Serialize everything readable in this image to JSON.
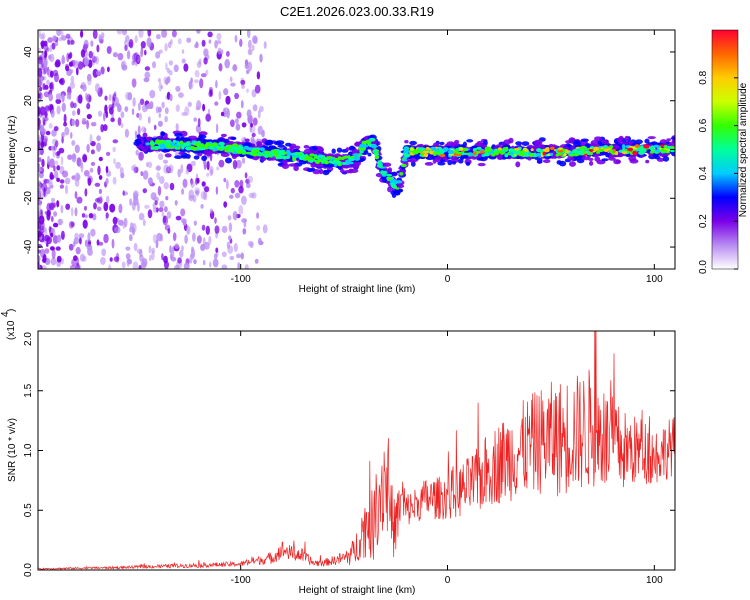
{
  "figure": {
    "title": "C2E1.2026.023.00.33.R19"
  },
  "chart_data": [
    {
      "type": "heatmap",
      "name": "spectrogram",
      "title": "C2E1.2026.023.00.33.R19",
      "xlabel": "Height of straight line (km)",
      "ylabel": "Frequency (Hz)",
      "xlim": [
        -198,
        110
      ],
      "ylim": [
        -49,
        49
      ],
      "xticks": [
        -100,
        0,
        100
      ],
      "xtick_labels": [
        "-100",
        "0",
        "100"
      ],
      "yticks": [
        -40,
        -20,
        0,
        20,
        40
      ],
      "ytick_labels": [
        "-40",
        "-20",
        "0",
        "20",
        "40"
      ],
      "colorbar": {
        "label": "Normalized spectral amplitude",
        "range": [
          0.0,
          1.0
        ],
        "ticks": [
          0.0,
          0.2,
          0.4,
          0.6,
          0.8
        ],
        "tick_labels": [
          "0.0",
          "0.2",
          "0.4",
          "0.6",
          "0.8"
        ],
        "colors": [
          "#ffffff",
          "#b88cf2",
          "#7a00e8",
          "#0000ff",
          "#00ccff",
          "#00ff99",
          "#33ff00",
          "#ccff00",
          "#ffcc00",
          "#ff6600",
          "#ff0033"
        ]
      },
      "ridge_x": [
        -150,
        -130,
        -110,
        -90,
        -70,
        -55,
        -45,
        -40,
        -36,
        -32,
        -28,
        -24,
        -20,
        -10,
        0,
        20,
        40,
        60,
        80,
        100,
        110
      ],
      "ridge_y": [
        2,
        2,
        1,
        -1,
        -3,
        -5,
        -4,
        2,
        3,
        -8,
        -12,
        -16,
        -1,
        -1,
        -1,
        -1,
        -1,
        -1,
        0,
        0,
        0
      ]
    },
    {
      "type": "line",
      "name": "snr",
      "xlabel": "Height of straight line (km)",
      "ylabel": "SNR (10 * v/v)",
      "multiplier_label": "(x10",
      "multiplier_exp": "4",
      "xlim": [
        -198,
        110
      ],
      "ylim": [
        0,
        2.0
      ],
      "xticks": [
        -100,
        0,
        100
      ],
      "xtick_labels": [
        "-100",
        "0",
        "100"
      ],
      "yticks": [
        0.0,
        0.5,
        1.0,
        1.5,
        2.0
      ],
      "ytick_labels": [
        "0.0",
        "0.5",
        "1.0",
        "1.5",
        "2.0"
      ],
      "series": [
        {
          "name": "SNR",
          "color": "#ee2222",
          "x": [
            -198,
            -180,
            -160,
            -140,
            -120,
            -100,
            -95,
            -85,
            -80,
            -75,
            -70,
            -65,
            -60,
            -55,
            -50,
            -45,
            -42,
            -40,
            -38,
            -36,
            -34,
            -32,
            -30,
            -28,
            -26,
            -24,
            -22,
            -20,
            -15,
            -10,
            -5,
            0,
            5,
            10,
            15,
            20,
            25,
            30,
            35,
            40,
            45,
            50,
            55,
            60,
            65,
            70,
            75,
            80,
            85,
            90,
            95,
            100,
            105,
            110
          ],
          "y": [
            0.01,
            0.015,
            0.02,
            0.03,
            0.04,
            0.05,
            0.07,
            0.1,
            0.17,
            0.14,
            0.12,
            0.06,
            0.06,
            0.08,
            0.1,
            0.15,
            0.3,
            0.35,
            0.42,
            0.35,
            0.55,
            0.7,
            0.8,
            0.55,
            0.35,
            0.45,
            0.6,
            0.5,
            0.55,
            0.6,
            0.6,
            0.62,
            0.65,
            0.7,
            0.75,
            0.85,
            0.9,
            0.95,
            1.0,
            1.05,
            1.08,
            1.1,
            1.1,
            1.15,
            1.15,
            1.2,
            1.1,
            1.05,
            1.0,
            1.0,
            1.0,
            0.95,
            1.0,
            1.05
          ],
          "spread": [
            0.005,
            0.008,
            0.01,
            0.015,
            0.02,
            0.02,
            0.03,
            0.05,
            0.08,
            0.06,
            0.06,
            0.03,
            0.03,
            0.04,
            0.06,
            0.12,
            0.2,
            0.25,
            0.3,
            0.3,
            0.35,
            0.45,
            0.5,
            0.35,
            0.25,
            0.25,
            0.25,
            0.15,
            0.15,
            0.18,
            0.18,
            0.2,
            0.22,
            0.25,
            0.28,
            0.32,
            0.35,
            0.38,
            0.4,
            0.42,
            0.45,
            0.48,
            0.5,
            0.5,
            0.5,
            0.52,
            0.45,
            0.4,
            0.35,
            0.3,
            0.28,
            0.25,
            0.25,
            0.25
          ]
        }
      ]
    }
  ]
}
